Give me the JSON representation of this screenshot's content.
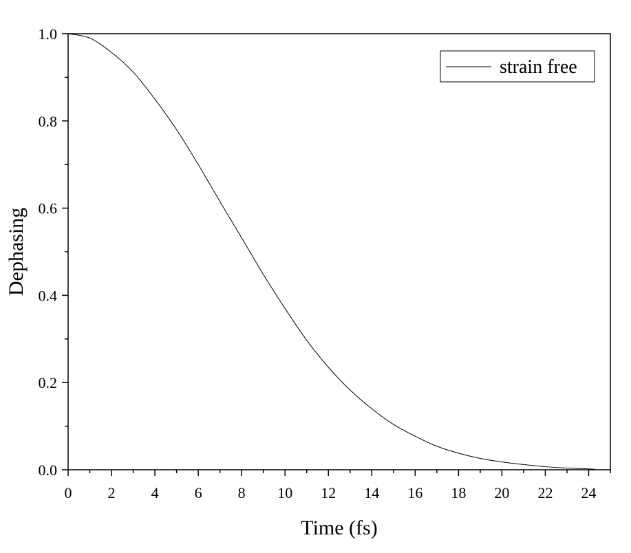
{
  "chart_data": {
    "type": "line",
    "title": "",
    "xlabel": "Time (fs)",
    "ylabel": "Dephasing",
    "xlim": [
      0,
      25
    ],
    "ylim": [
      0,
      1.0
    ],
    "xticks": [
      "0",
      "2",
      "4",
      "6",
      "8",
      "10",
      "12",
      "14",
      "16",
      "18",
      "20",
      "22",
      "24"
    ],
    "yticks": [
      "0.0",
      "0.2",
      "0.4",
      "0.6",
      "0.8",
      "1.0"
    ],
    "grid": false,
    "legend_position": "top-right",
    "series": [
      {
        "name": "strain free",
        "color": "#000000",
        "x": [
          0,
          1,
          2,
          3,
          4,
          5,
          6,
          7,
          8,
          9,
          10,
          11,
          12,
          13,
          14,
          15,
          16,
          17,
          18,
          19,
          20,
          21,
          22,
          23,
          24,
          24.3
        ],
        "y": [
          1.0,
          0.99,
          0.957,
          0.912,
          0.85,
          0.78,
          0.7,
          0.615,
          0.532,
          0.448,
          0.37,
          0.297,
          0.235,
          0.183,
          0.14,
          0.104,
          0.077,
          0.054,
          0.038,
          0.026,
          0.018,
          0.012,
          0.007,
          0.004,
          0.002,
          0.001
        ]
      }
    ]
  }
}
